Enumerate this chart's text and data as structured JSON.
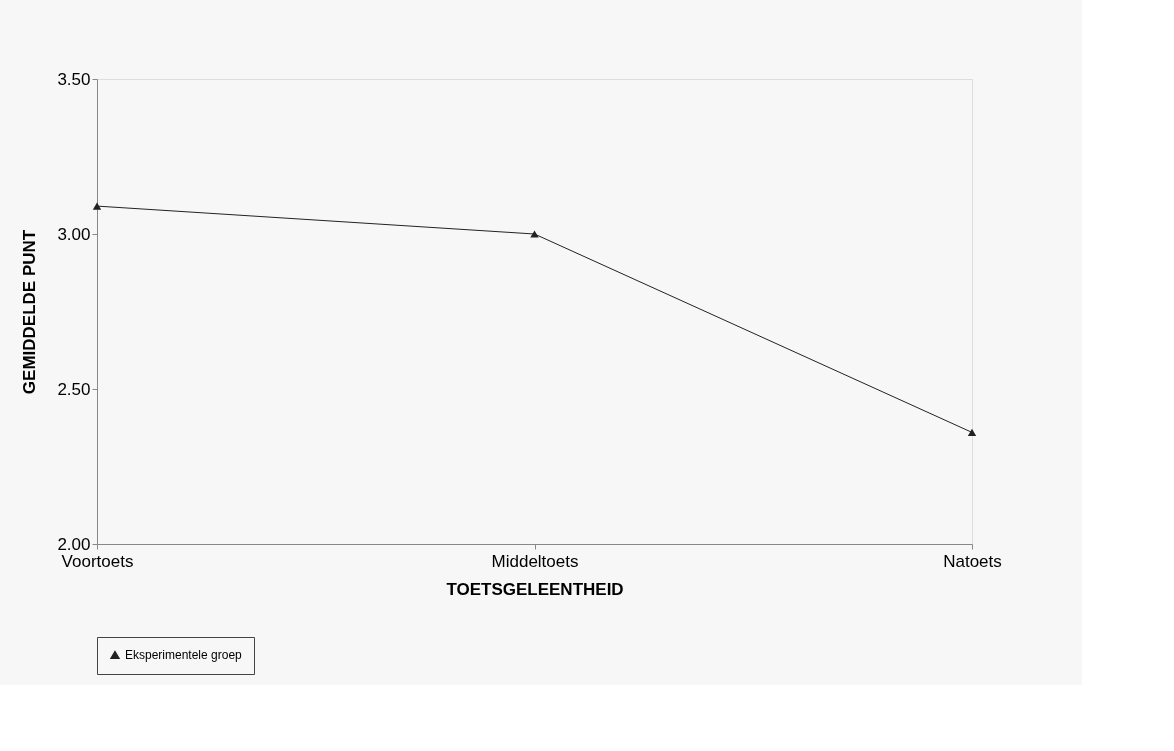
{
  "chart_data": {
    "type": "line",
    "xlabel": "TOETSGELEENTHEID",
    "ylabel": "GEMIDDELDE PUNT",
    "categories": [
      "Voortoets",
      "Middeltoets",
      "Natoets"
    ],
    "series": [
      {
        "name": "Eksperimentele groep",
        "color": "#222222",
        "values": [
          3.09,
          3.0,
          2.36
        ]
      }
    ],
    "ylim": [
      2.0,
      3.5
    ],
    "yticks": [
      {
        "value": 2.0,
        "label": "2.00"
      },
      {
        "value": 2.5,
        "label": "2.50"
      },
      {
        "value": 3.0,
        "label": "3.00"
      },
      {
        "value": 3.5,
        "label": "3.50"
      }
    ],
    "grid": false,
    "legend": "bottom",
    "marker": "triangle",
    "line_style": "solid"
  }
}
